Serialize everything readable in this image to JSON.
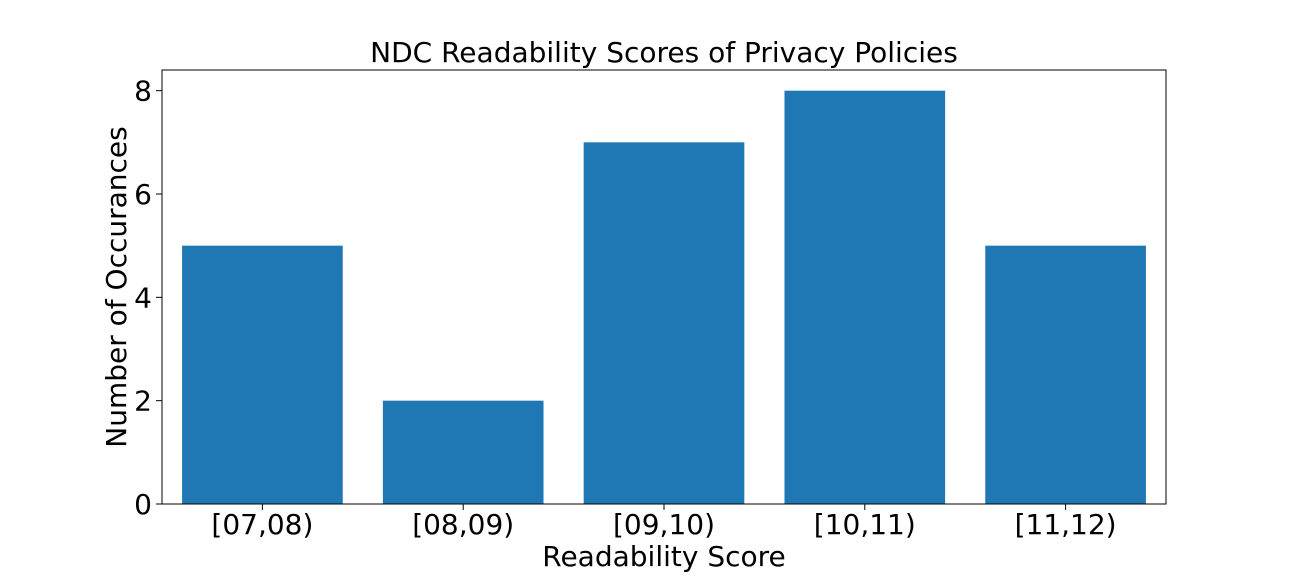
{
  "chart_data": {
    "type": "bar",
    "title": "NDC Readability Scores of Privacy Policies",
    "xlabel": "Readability Score",
    "ylabel": "Number of Occurances",
    "categories": [
      "[07,08)",
      "[08,09)",
      "[09,10)",
      "[10,11)",
      "[11,12)"
    ],
    "values": [
      5,
      2,
      7,
      8,
      5
    ],
    "yticks": [
      0,
      2,
      4,
      6,
      8
    ],
    "ylim": [
      0,
      8.4
    ],
    "bar_color": "#1f77b4",
    "grid": false,
    "legend": "none"
  }
}
